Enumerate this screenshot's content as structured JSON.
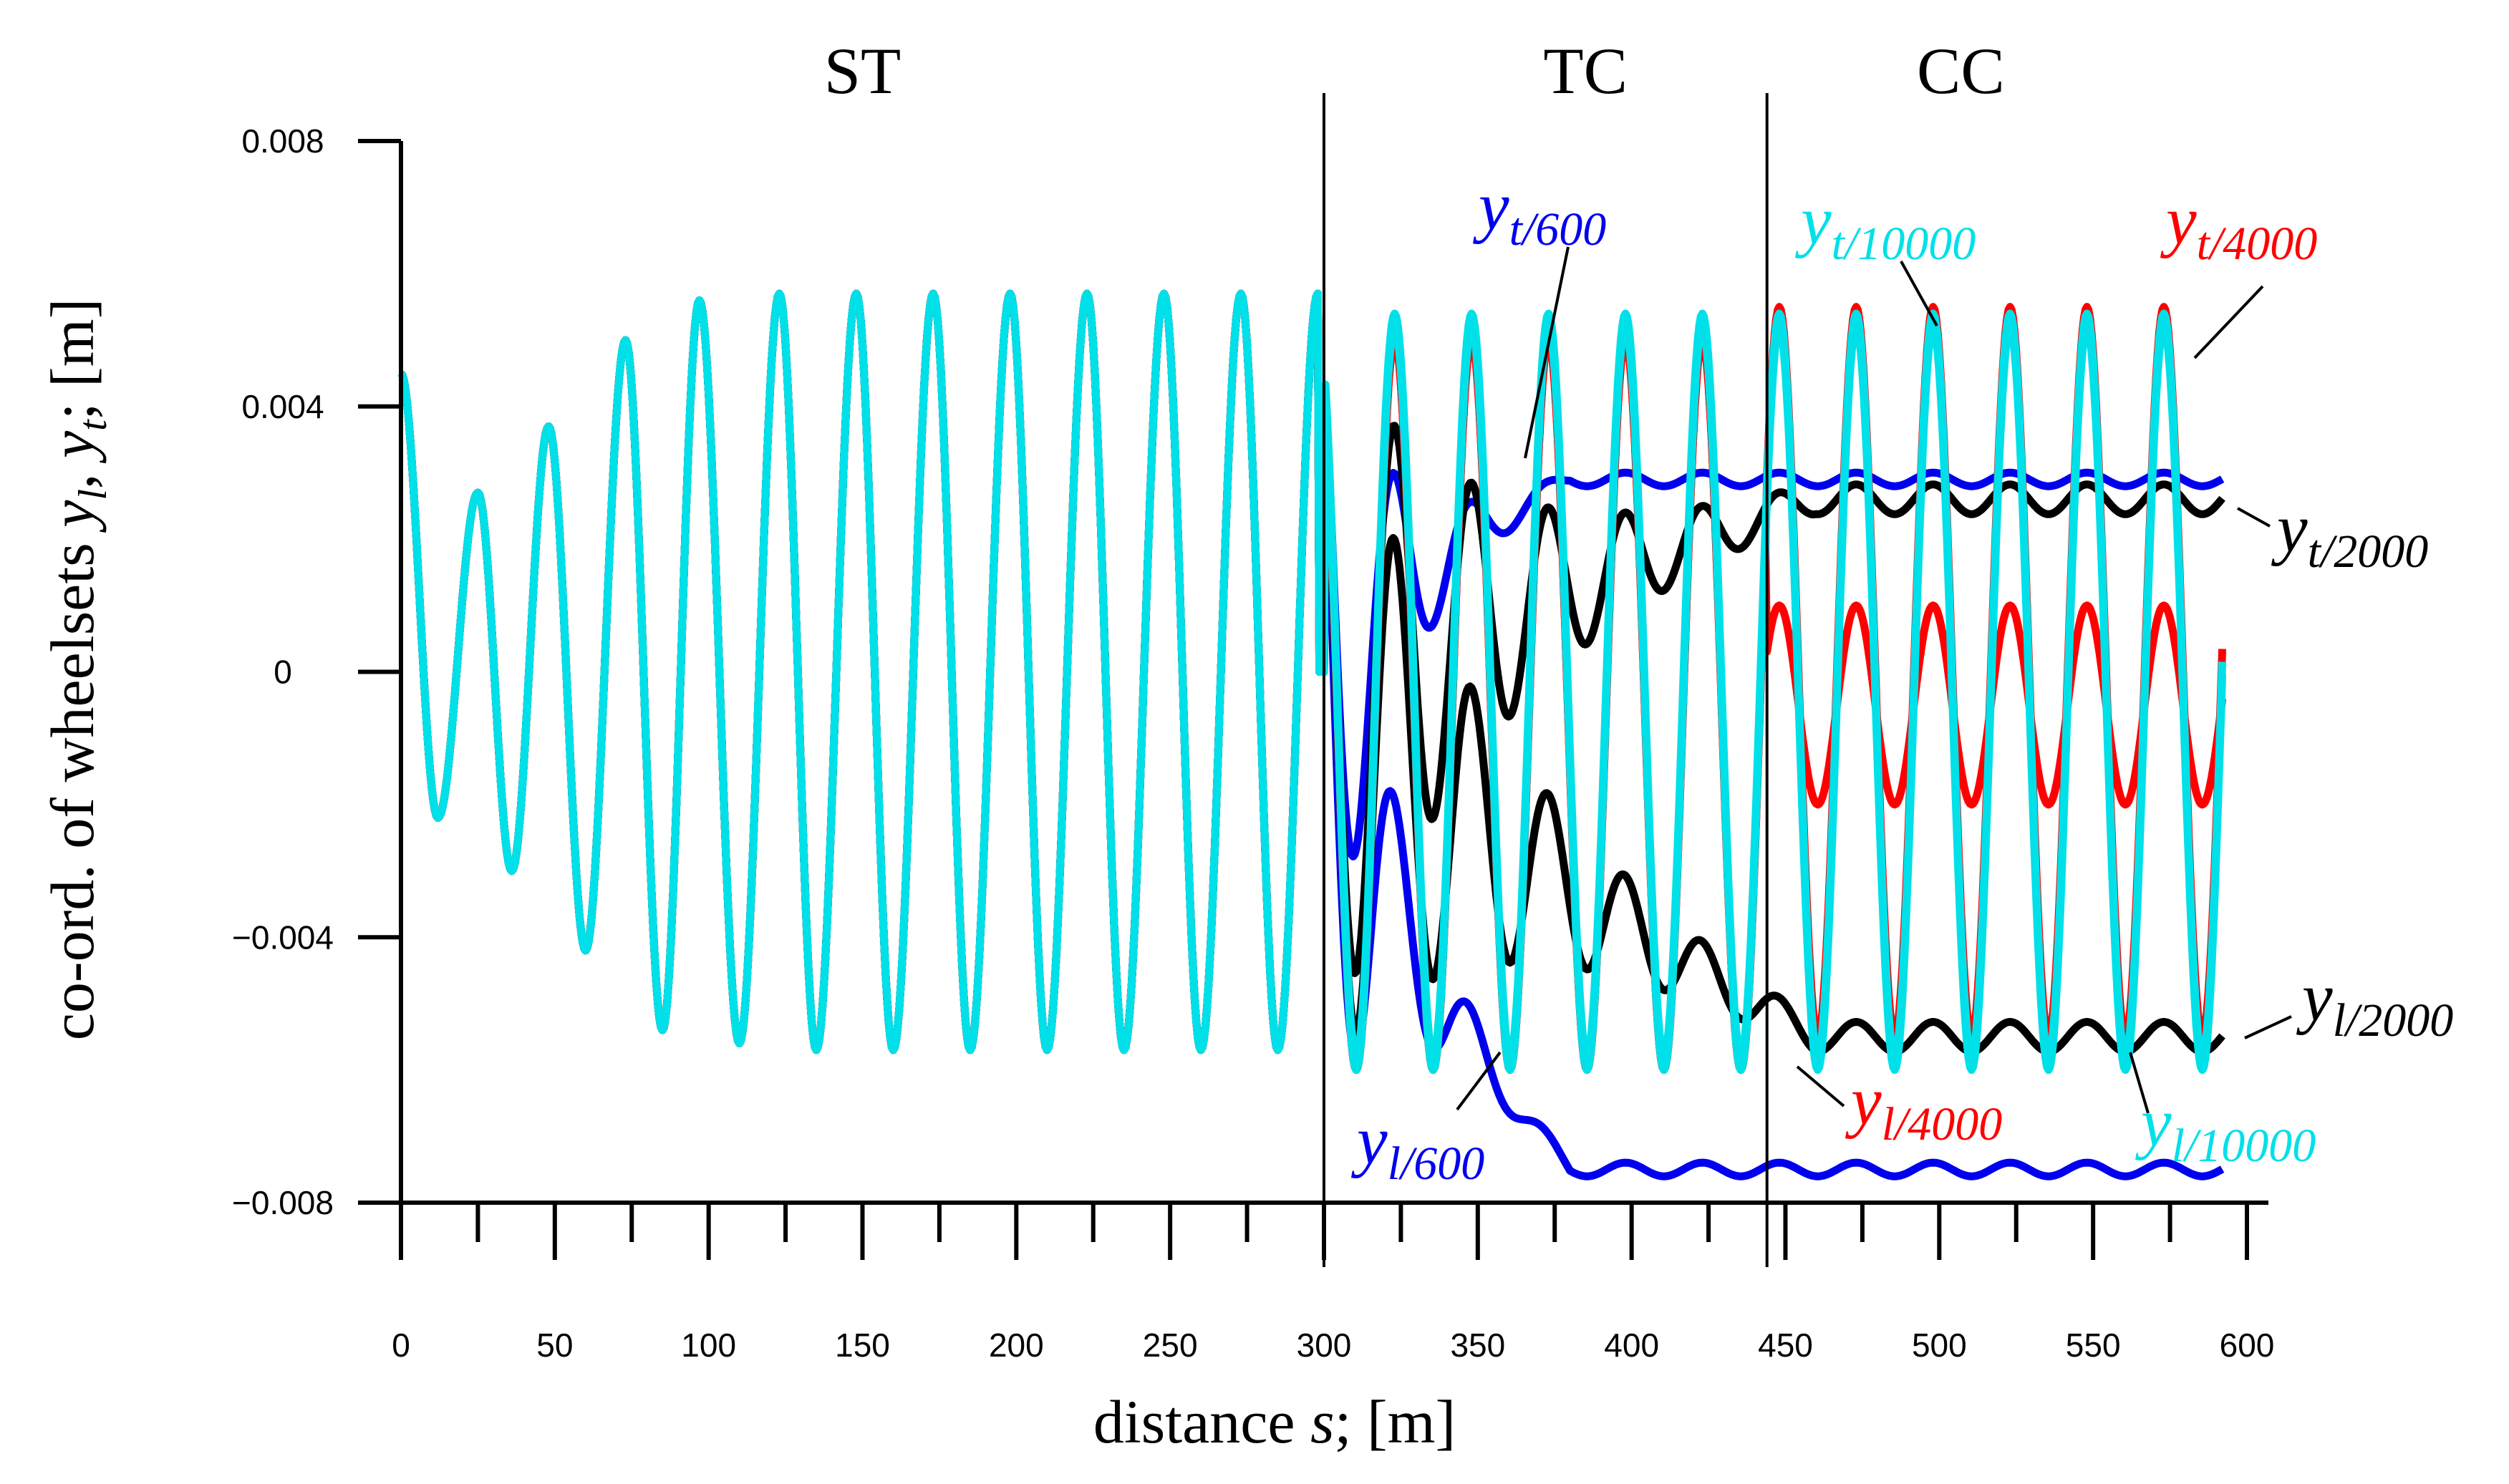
{
  "chart_data": {
    "type": "line",
    "title": "",
    "xlabel_prefix": "distance ",
    "xlabel_var": "s",
    "xlabel_suffix": "; [m]",
    "ylabel_prefix": "co-ord. of wheelsets ",
    "ylabel_var1": "y",
    "ylabel_sub1": "l",
    "ylabel_sep": ", ",
    "ylabel_var2": "y",
    "ylabel_sub2": "t",
    "ylabel_suffix": "; [m]",
    "xlim": [
      0,
      600
    ],
    "ylim": [
      -0.008,
      0.008
    ],
    "xticks": [
      "0",
      "50",
      "100",
      "150",
      "200",
      "250",
      "300",
      "350",
      "400",
      "450",
      "500",
      "550",
      "600"
    ],
    "yticks": [
      "0.008",
      "0.004",
      "0",
      "−0.004",
      "−0.008"
    ],
    "regions": [
      {
        "label": "ST",
        "x_start": 0,
        "x_end": 300
      },
      {
        "label": "TC",
        "x_start": 300,
        "x_end": 444
      },
      {
        "label": "CC",
        "x_start": 444,
        "x_end": 600
      }
    ],
    "region_boundaries": [
      300,
      444
    ],
    "series": [
      {
        "name": "y_t/600",
        "var": "y",
        "sub": "t/600",
        "color": "#0000ee",
        "type": "trailing",
        "amplitude_decay": 0.06,
        "settle": 0.0029
      },
      {
        "name": "y_l/600",
        "var": "y",
        "sub": "l/600",
        "color": "#0000ee",
        "type": "leading",
        "amplitude_decay": 0.06,
        "settle": -0.0075
      },
      {
        "name": "y_t/2000",
        "var": "y",
        "sub": "t/2000",
        "color": "#000000",
        "type": "trailing",
        "amplitude_decay": 0.03,
        "settle": 0.0026
      },
      {
        "name": "y_l/2000",
        "var": "y",
        "sub": "l/2000",
        "color": "#000000",
        "type": "leading",
        "amplitude_decay": 0.03,
        "settle": -0.0055
      },
      {
        "name": "y_t/4000",
        "var": "y",
        "sub": "t/4000",
        "color": "#ff0000",
        "type": "trailing",
        "amplitude_decay": 0.0,
        "settle": 0.0017
      },
      {
        "name": "y_l/4000",
        "var": "y",
        "sub": "l/4000",
        "color": "#ff0000",
        "type": "leading",
        "amplitude_decay": 0.0,
        "settle": -0.0005
      },
      {
        "name": "y_t/10000",
        "var": "y",
        "sub": "t/10000",
        "color": "#00e0e8",
        "type": "trailing",
        "amplitude_decay": 0.0,
        "settle": 0.0
      },
      {
        "name": "y_l/10000",
        "var": "y",
        "sub": "l/10000",
        "color": "#00e0e8",
        "type": "leading",
        "amplitude_decay": 0.0,
        "settle": 0.0
      }
    ],
    "hunting_peaks_x": [
      0,
      12,
      25,
      36,
      48,
      60,
      73,
      85,
      97,
      110,
      123,
      135,
      148,
      160,
      173,
      185,
      198,
      210,
      223,
      235,
      248,
      260,
      273,
      285,
      298
    ],
    "hunting_peak_values": [
      0.0045,
      -0.0022,
      0.0027,
      -0.003,
      0.0037,
      -0.0042,
      0.005,
      -0.0054,
      0.0056,
      -0.0056,
      0.0057,
      -0.0057,
      0.0057,
      -0.0057,
      0.0057,
      -0.0057,
      0.0057,
      -0.0057,
      0.0057,
      -0.0057,
      0.0057,
      -0.0057,
      0.0057,
      -0.0057,
      0.0057
    ]
  },
  "labels": [
    {
      "id": "yt600",
      "var": "y",
      "sub": "t/600",
      "color": "#0000ee"
    },
    {
      "id": "yl600",
      "var": "y",
      "sub": "l/600",
      "color": "#0000ee"
    },
    {
      "id": "yt10000",
      "var": "y",
      "sub": "t/10000",
      "color": "#00e0e8"
    },
    {
      "id": "yt4000",
      "var": "y",
      "sub": "t/4000",
      "color": "#ff0000"
    },
    {
      "id": "yt2000",
      "var": "y",
      "sub": "t/2000",
      "color": "#000000"
    },
    {
      "id": "yl2000",
      "var": "y",
      "sub": "l/2000",
      "color": "#000000"
    },
    {
      "id": "yl4000",
      "var": "y",
      "sub": "l/4000",
      "color": "#ff0000"
    },
    {
      "id": "yl10000",
      "var": "y",
      "sub": "l/10000",
      "color": "#00e0e8"
    }
  ]
}
